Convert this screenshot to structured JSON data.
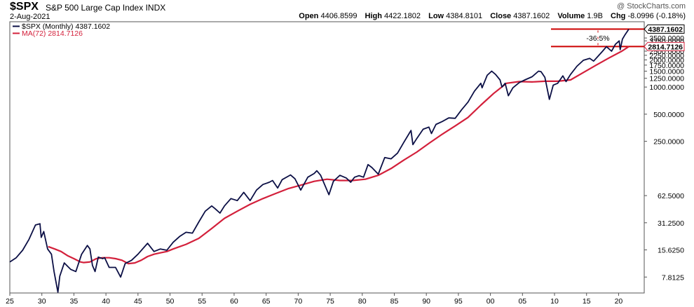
{
  "header": {
    "symbol": "$SPX",
    "description": "S&P 500 Large Cap Index",
    "exchange": "INDX",
    "date": "2-Aug-2021",
    "watermark": "@ StockCharts.com",
    "open_label": "Open",
    "open": "4406.8599",
    "high_label": "High",
    "high": "4422.1802",
    "low_label": "Low",
    "low": "4384.8101",
    "close_label": "Close",
    "close": "4387.1602",
    "volume_label": "Volume",
    "volume": "1.9B",
    "chg_label": "Chg",
    "chg": "-8.0996 (-0.18%)"
  },
  "legend": {
    "price": "$SPX (Monthly) 4387.1602",
    "ma": "MA(72) 2814.7126"
  },
  "annotation": {
    "drop": "-36.5%"
  },
  "last_value_labels": {
    "price": "4387.1602",
    "ma": "2814.7126"
  },
  "colors": {
    "price": "#0b0f45",
    "ma": "#d3203b",
    "annotation": "#cc0000"
  },
  "chart_data": {
    "type": "line",
    "scale": "log",
    "ylim": [
      5.2,
      5300
    ],
    "xlim": [
      1925,
      2024
    ],
    "x_tick_labels": [
      "25",
      "30",
      "35",
      "40",
      "45",
      "50",
      "55",
      "60",
      "65",
      "70",
      "75",
      "80",
      "85",
      "90",
      "95",
      "00",
      "05",
      "10",
      "15",
      "20"
    ],
    "x_tick_years": [
      1925,
      1930,
      1935,
      1940,
      1945,
      1950,
      1955,
      1960,
      1965,
      1970,
      1975,
      1980,
      1985,
      1990,
      1995,
      2000,
      2005,
      2010,
      2015,
      2020
    ],
    "y_ticks": [
      {
        "value": 7.8125,
        "label": "7.8125"
      },
      {
        "value": 15.625,
        "label": "15.6250"
      },
      {
        "value": 31.25,
        "label": "31.2500"
      },
      {
        "value": 62.5,
        "label": "62.5000"
      },
      {
        "value": 250,
        "label": "250.0000"
      },
      {
        "value": 500,
        "label": "500.0000"
      },
      {
        "value": 1000,
        "label": "1000.0000"
      },
      {
        "value": 1250,
        "label": "1250.0000"
      },
      {
        "value": 1500,
        "label": "1500.0000"
      },
      {
        "value": 1750,
        "label": "1750.0000"
      },
      {
        "value": 2000,
        "label": "2000.0000"
      },
      {
        "value": 2250,
        "label": "2250.0000"
      },
      {
        "value": 2500,
        "label": "2500.0000"
      },
      {
        "value": 3250,
        "label": "3250.0000"
      },
      {
        "value": 3500,
        "label": "3500.0000"
      }
    ],
    "series": [
      {
        "name": "$SPX (Monthly)",
        "points": [
          [
            1925.0,
            11.5
          ],
          [
            1926.0,
            12.8
          ],
          [
            1927.0,
            15.5
          ],
          [
            1928.0,
            20.5
          ],
          [
            1929.0,
            29.5
          ],
          [
            1929.7,
            30.5
          ],
          [
            1929.9,
            21.5
          ],
          [
            1930.3,
            25
          ],
          [
            1930.9,
            16
          ],
          [
            1931.5,
            14
          ],
          [
            1931.9,
            9
          ],
          [
            1932.5,
            5.3
          ],
          [
            1932.8,
            8
          ],
          [
            1933.5,
            11.2
          ],
          [
            1934.5,
            9.5
          ],
          [
            1935.3,
            9
          ],
          [
            1936.2,
            14
          ],
          [
            1937.1,
            17.5
          ],
          [
            1937.5,
            16
          ],
          [
            1937.9,
            10.5
          ],
          [
            1938.3,
            9
          ],
          [
            1938.8,
            13
          ],
          [
            1939.5,
            12.5
          ],
          [
            1939.8,
            12.8
          ],
          [
            1940.5,
            10
          ],
          [
            1941.5,
            10
          ],
          [
            1942.3,
            7.8
          ],
          [
            1943.0,
            11
          ],
          [
            1944.0,
            12
          ],
          [
            1945.0,
            14
          ],
          [
            1946.5,
            18.5
          ],
          [
            1947.5,
            15
          ],
          [
            1948.5,
            16
          ],
          [
            1949.5,
            15.5
          ],
          [
            1950.5,
            19
          ],
          [
            1951.5,
            22
          ],
          [
            1952.5,
            24.5
          ],
          [
            1953.5,
            24
          ],
          [
            1954.5,
            32
          ],
          [
            1955.5,
            42
          ],
          [
            1956.5,
            48
          ],
          [
            1957.0,
            45
          ],
          [
            1957.8,
            40
          ],
          [
            1958.5,
            48
          ],
          [
            1959.5,
            58
          ],
          [
            1960.5,
            55
          ],
          [
            1961.5,
            68
          ],
          [
            1962.5,
            55
          ],
          [
            1963.5,
            72
          ],
          [
            1964.5,
            83
          ],
          [
            1965.5,
            88
          ],
          [
            1966.0,
            92
          ],
          [
            1966.8,
            76
          ],
          [
            1967.5,
            94
          ],
          [
            1968.8,
            106
          ],
          [
            1969.5,
            96
          ],
          [
            1970.4,
            72
          ],
          [
            1971.5,
            100
          ],
          [
            1972.5,
            110
          ],
          [
            1972.9,
            118
          ],
          [
            1973.5,
            105
          ],
          [
            1974.8,
            64
          ],
          [
            1975.5,
            90
          ],
          [
            1976.5,
            105
          ],
          [
            1977.5,
            98
          ],
          [
            1978.2,
            88
          ],
          [
            1978.8,
            100
          ],
          [
            1979.5,
            104
          ],
          [
            1980.2,
            100
          ],
          [
            1980.9,
            138
          ],
          [
            1981.5,
            128
          ],
          [
            1982.5,
            108
          ],
          [
            1983.5,
            165
          ],
          [
            1984.5,
            160
          ],
          [
            1985.5,
            185
          ],
          [
            1986.5,
            245
          ],
          [
            1987.6,
            330
          ],
          [
            1987.9,
            230
          ],
          [
            1988.5,
            268
          ],
          [
            1989.5,
            340
          ],
          [
            1990.4,
            360
          ],
          [
            1990.8,
            305
          ],
          [
            1991.5,
            385
          ],
          [
            1992.5,
            415
          ],
          [
            1993.5,
            455
          ],
          [
            1994.5,
            450
          ],
          [
            1995.5,
            560
          ],
          [
            1996.5,
            680
          ],
          [
            1997.5,
            900
          ],
          [
            1998.5,
            1100
          ],
          [
            1998.7,
            980
          ],
          [
            1999.5,
            1350
          ],
          [
            2000.2,
            1500
          ],
          [
            2000.8,
            1380
          ],
          [
            2001.5,
            1200
          ],
          [
            2001.8,
            1000
          ],
          [
            2002.3,
            1100
          ],
          [
            2002.8,
            800
          ],
          [
            2003.5,
            980
          ],
          [
            2004.5,
            1120
          ],
          [
            2005.5,
            1210
          ],
          [
            2006.5,
            1300
          ],
          [
            2007.5,
            1500
          ],
          [
            2007.9,
            1480
          ],
          [
            2008.5,
            1280
          ],
          [
            2009.2,
            730
          ],
          [
            2009.8,
            1050
          ],
          [
            2010.5,
            1100
          ],
          [
            2011.3,
            1330
          ],
          [
            2011.8,
            1150
          ],
          [
            2012.5,
            1380
          ],
          [
            2013.5,
            1700
          ],
          [
            2014.5,
            1980
          ],
          [
            2015.5,
            2080
          ],
          [
            2016.1,
            1940
          ],
          [
            2016.8,
            2200
          ],
          [
            2017.5,
            2500
          ],
          [
            2018.1,
            2800
          ],
          [
            2018.9,
            2500
          ],
          [
            2019.5,
            2980
          ],
          [
            2020.1,
            3250
          ],
          [
            2020.25,
            2600
          ],
          [
            2020.6,
            3400
          ],
          [
            2021.0,
            3800
          ],
          [
            2021.59,
            4387.16
          ]
        ]
      },
      {
        "name": "MA(72)",
        "points": [
          [
            1931.0,
            17
          ],
          [
            1932.0,
            16
          ],
          [
            1933.0,
            15
          ],
          [
            1934.0,
            13.5
          ],
          [
            1935.0,
            12.5
          ],
          [
            1936.0,
            11.5
          ],
          [
            1936.5,
            11.3
          ],
          [
            1937.5,
            11.5
          ],
          [
            1938.5,
            12.5
          ],
          [
            1939.5,
            12.8
          ],
          [
            1940.5,
            12.8
          ],
          [
            1941.5,
            12.5
          ],
          [
            1942.5,
            12
          ],
          [
            1943.5,
            11
          ],
          [
            1944.5,
            11.2
          ],
          [
            1945.5,
            12
          ],
          [
            1946.5,
            13.2
          ],
          [
            1947.5,
            14
          ],
          [
            1948.5,
            14.5
          ],
          [
            1949.5,
            15
          ],
          [
            1950.5,
            16
          ],
          [
            1952.5,
            18
          ],
          [
            1954.5,
            21
          ],
          [
            1956.5,
            27
          ],
          [
            1958.5,
            35
          ],
          [
            1960.5,
            42
          ],
          [
            1962.5,
            50
          ],
          [
            1964.5,
            58
          ],
          [
            1966.5,
            66
          ],
          [
            1968.5,
            75
          ],
          [
            1970.5,
            82
          ],
          [
            1972.5,
            90
          ],
          [
            1974.5,
            95
          ],
          [
            1976.5,
            92
          ],
          [
            1978.5,
            92
          ],
          [
            1980.5,
            95
          ],
          [
            1982.5,
            105
          ],
          [
            1984.5,
            125
          ],
          [
            1986.5,
            155
          ],
          [
            1988.5,
            190
          ],
          [
            1990.5,
            240
          ],
          [
            1992.5,
            300
          ],
          [
            1994.5,
            370
          ],
          [
            1996.5,
            460
          ],
          [
            1998.5,
            630
          ],
          [
            2000.5,
            850
          ],
          [
            2002.5,
            1100
          ],
          [
            2004.5,
            1150
          ],
          [
            2006.5,
            1140
          ],
          [
            2008.5,
            1160
          ],
          [
            2010.5,
            1160
          ],
          [
            2012.5,
            1200
          ],
          [
            2014.5,
            1450
          ],
          [
            2016.5,
            1750
          ],
          [
            2018.5,
            2100
          ],
          [
            2020.5,
            2500
          ],
          [
            2021.59,
            2814.7126
          ]
        ]
      }
    ],
    "annotations": [
      {
        "type": "hline",
        "y": 4387.1602
      },
      {
        "type": "hline",
        "y": 2814.7126
      },
      {
        "type": "label",
        "text": "-36.5%"
      }
    ],
    "legend_position": "top-left",
    "grid": false
  }
}
